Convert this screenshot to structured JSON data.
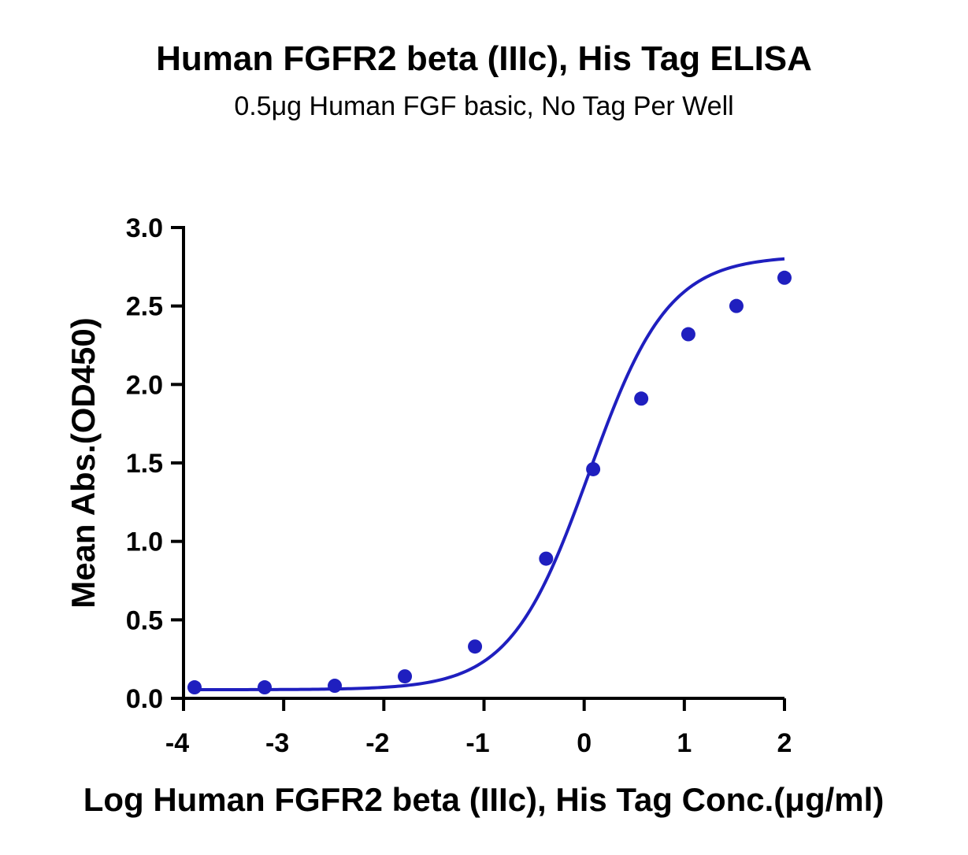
{
  "chart_data": {
    "type": "scatter",
    "title": "Human FGFR2 beta (IIIc), His Tag ELISA",
    "subtitle": "0.5μg Human FGF basic, No Tag Per Well",
    "xlabel": "Log Human FGFR2 beta (IIIc), His Tag Conc.(μg/ml)",
    "ylabel": "Mean Abs.(OD450)",
    "xlim": [
      -4,
      2
    ],
    "ylim": [
      0,
      3.0
    ],
    "x_ticks": [
      "-4",
      "-3",
      "-2",
      "-1",
      "0",
      "1",
      "2"
    ],
    "y_ticks": [
      "0.0",
      "0.5",
      "1.0",
      "1.5",
      "2.0",
      "2.5",
      "3.0"
    ],
    "grid": false,
    "series": [
      {
        "color": "#1f1fbf",
        "points": [
          {
            "x": -3.89,
            "y": 0.07
          },
          {
            "x": -3.19,
            "y": 0.07
          },
          {
            "x": -2.49,
            "y": 0.08
          },
          {
            "x": -1.79,
            "y": 0.14
          },
          {
            "x": -1.09,
            "y": 0.33
          },
          {
            "x": -0.38,
            "y": 0.89
          },
          {
            "x": 0.09,
            "y": 1.46
          },
          {
            "x": 0.57,
            "y": 1.91
          },
          {
            "x": 1.04,
            "y": 2.32
          },
          {
            "x": 1.52,
            "y": 2.5
          },
          {
            "x": 2.0,
            "y": 2.68
          }
        ],
        "fit": {
          "model": "4PL",
          "bottom": 0.055,
          "top": 2.82,
          "logEC50": 0.05,
          "hill": 1.1
        }
      }
    ]
  }
}
